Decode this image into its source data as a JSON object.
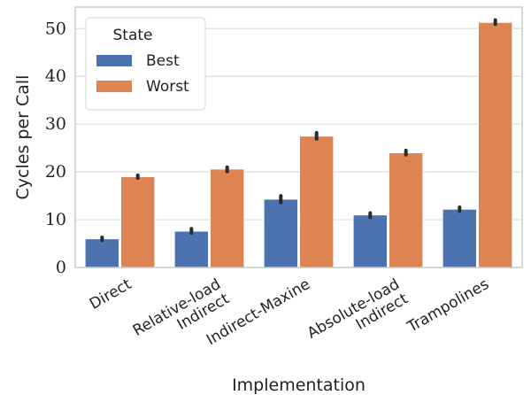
{
  "chart_data": {
    "type": "bar",
    "xlabel": "Implementation",
    "ylabel": "Cycles per Call",
    "ylim": [
      0,
      54.5
    ],
    "yticks": [
      0,
      10,
      20,
      30,
      40,
      50
    ],
    "categories": [
      [
        "Direct"
      ],
      [
        "Relative-load",
        "Indirect"
      ],
      [
        "Indirect-Maxine"
      ],
      [
        "Absolute-load",
        "Indirect"
      ],
      [
        "Trampolines"
      ]
    ],
    "series": [
      {
        "name": "Best",
        "color": "#4c72b0",
        "values": [
          6.0,
          7.6,
          14.3,
          11.0,
          12.2
        ],
        "error_low": [
          5.7,
          7.2,
          13.6,
          10.5,
          11.8
        ],
        "error_high": [
          6.3,
          8.1,
          15.0,
          11.4,
          12.6
        ]
      },
      {
        "name": "Worst",
        "color": "#dd8452",
        "values": [
          19.0,
          20.6,
          27.5,
          24.0,
          51.3
        ],
        "error_low": [
          18.7,
          20.1,
          26.9,
          23.6,
          50.9
        ],
        "error_high": [
          19.3,
          21.0,
          28.2,
          24.5,
          51.8
        ]
      }
    ],
    "grid": true,
    "legend": {
      "title": "State",
      "placement": "top-left"
    }
  }
}
